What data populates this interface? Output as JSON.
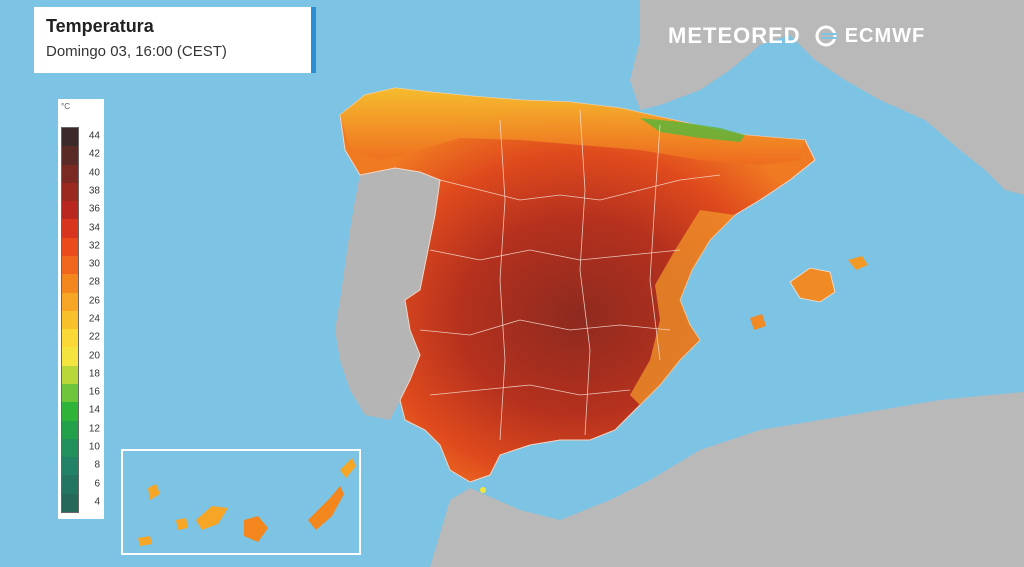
{
  "title": {
    "heading": "Temperatura",
    "subheading": "Domingo 03, 16:00 (CEST)"
  },
  "branding": {
    "meteored": "METEORED",
    "ecmwf": "ECMWF"
  },
  "legend": {
    "unit": "°C",
    "ticks": [
      "44",
      "42",
      "40",
      "38",
      "36",
      "34",
      "32",
      "30",
      "28",
      "26",
      "24",
      "22",
      "20",
      "18",
      "16",
      "14",
      "12",
      "10",
      "8",
      "6",
      "4"
    ],
    "colors": [
      "#3c2a2a",
      "#5a2a26",
      "#7a2a22",
      "#9a2a20",
      "#b82820",
      "#d8351e",
      "#ea4a1c",
      "#f0661c",
      "#f4861e",
      "#f6a524",
      "#f8c12c",
      "#fad836",
      "#f3e43f",
      "#b8d83a",
      "#6cc53a",
      "#2fb43a",
      "#23a04a",
      "#22905a",
      "#218266",
      "#23755f",
      "#256a59"
    ]
  },
  "map": {
    "colors": {
      "sea": "#7cc3e4",
      "land_neutral": "#b7b7b7",
      "hot_interior": "#a8311f",
      "warm": "#e8541c",
      "mild": "#f29a28",
      "cool_coast": "#f5c531",
      "green_strip": "#5eb43a"
    }
  }
}
